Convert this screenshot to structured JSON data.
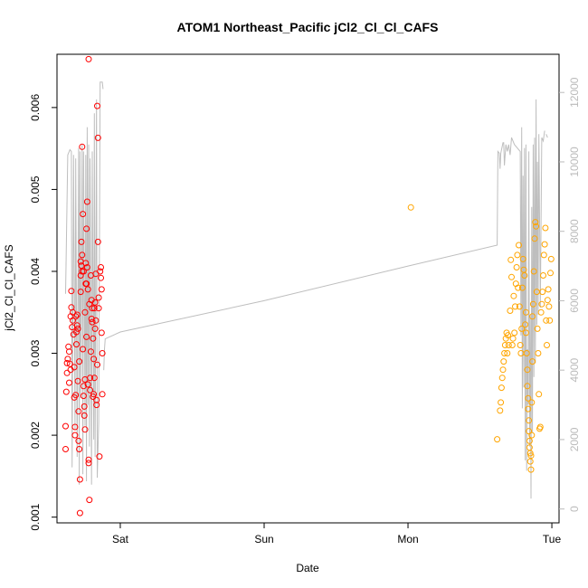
{
  "chart_data": {
    "type": "scatter",
    "title": "ATOM1 Northeast_Pacific jCl2_Cl_Cl_CAFS",
    "xlabel": "Date",
    "ylabel": "jCl2_Cl_Cl_CAFS",
    "x_ticks": [
      {
        "label": "Sat",
        "pos": 3.0
      },
      {
        "label": "Sun",
        "pos": 4.0
      },
      {
        "label": "Mon",
        "pos": 5.0
      },
      {
        "label": "Tue",
        "pos": 6.0
      }
    ],
    "xlim": [
      2.56,
      6.05
    ],
    "ylim": [
      0.00093,
      0.00665
    ],
    "y_ticks": [
      "0.001",
      "0.002",
      "0.003",
      "0.004",
      "0.005",
      "0.006"
    ],
    "y2lim": [
      -400,
      13100
    ],
    "y2_ticks": [
      "0",
      "2000",
      "4000",
      "6000",
      "8000",
      "10000",
      "12000"
    ],
    "colors": {
      "series1": "#ff0000",
      "series2": "#ffa500",
      "altitude": "#bebebe"
    },
    "series": [
      {
        "points": [
          [
            2.62,
            0.00183
          ],
          [
            2.62,
            0.00211
          ],
          [
            2.625,
            0.00253
          ],
          [
            2.63,
            0.00276
          ],
          [
            2.63,
            0.00288
          ],
          [
            2.635,
            0.00293
          ],
          [
            2.64,
            0.00308
          ],
          [
            2.645,
            0.00302
          ],
          [
            2.645,
            0.00264
          ],
          [
            2.65,
            0.00287
          ],
          [
            2.655,
            0.0028
          ],
          [
            2.655,
            0.00345
          ],
          [
            2.66,
            0.00356
          ],
          [
            2.66,
            0.00376
          ],
          [
            2.665,
            0.00332
          ],
          [
            2.67,
            0.0035
          ],
          [
            2.67,
            0.0034
          ],
          [
            2.675,
            0.00323
          ],
          [
            2.68,
            0.00283
          ],
          [
            2.68,
            0.00246
          ],
          [
            2.685,
            0.0021
          ],
          [
            2.685,
            0.002
          ],
          [
            2.69,
            0.00249
          ],
          [
            2.695,
            0.00311
          ],
          [
            2.695,
            0.00326
          ],
          [
            2.7,
            0.00334
          ],
          [
            2.7,
            0.00347
          ],
          [
            2.705,
            0.00266
          ],
          [
            2.71,
            0.00229
          ],
          [
            2.71,
            0.00193
          ],
          [
            2.715,
            0.00183
          ],
          [
            2.72,
            0.00105
          ],
          [
            2.72,
            0.00146
          ],
          [
            2.725,
            0.00395
          ],
          [
            2.725,
            0.00375
          ],
          [
            2.73,
            0.00407
          ],
          [
            2.73,
            0.00436
          ],
          [
            2.735,
            0.00552
          ],
          [
            2.735,
            0.0042
          ],
          [
            2.74,
            0.0047
          ],
          [
            2.74,
            0.00305
          ],
          [
            2.745,
            0.0026
          ],
          [
            2.745,
            0.00248
          ],
          [
            2.75,
            0.00235
          ],
          [
            2.75,
            0.00224
          ],
          [
            2.755,
            0.00207
          ],
          [
            2.755,
            0.0035
          ],
          [
            2.76,
            0.00385
          ],
          [
            2.76,
            0.0041
          ],
          [
            2.765,
            0.00452
          ],
          [
            2.765,
            0.0032
          ],
          [
            2.77,
            0.00485
          ],
          [
            2.77,
            0.00405
          ],
          [
            2.775,
            0.00378
          ],
          [
            2.775,
            0.00262
          ],
          [
            2.78,
            0.0017
          ],
          [
            2.78,
            0.00166
          ],
          [
            2.785,
            0.00121
          ],
          [
            2.79,
            0.00255
          ],
          [
            2.79,
            0.0027
          ],
          [
            2.795,
            0.00302
          ],
          [
            2.795,
            0.00395
          ],
          [
            2.8,
            0.00365
          ],
          [
            2.8,
            0.00342
          ],
          [
            2.805,
            0.00338
          ],
          [
            2.81,
            0.00318
          ],
          [
            2.81,
            0.00247
          ],
          [
            2.815,
            0.0025
          ],
          [
            2.815,
            0.00293
          ],
          [
            2.82,
            0.00355
          ],
          [
            2.82,
            0.0027
          ],
          [
            2.825,
            0.0033
          ],
          [
            2.83,
            0.00397
          ],
          [
            2.83,
            0.0034
          ],
          [
            2.835,
            0.00243
          ],
          [
            2.835,
            0.00237
          ],
          [
            2.84,
            0.00286
          ],
          [
            2.84,
            0.00602
          ],
          [
            2.845,
            0.00563
          ],
          [
            2.845,
            0.00436
          ],
          [
            2.85,
            0.00355
          ],
          [
            2.85,
            0.00368
          ],
          [
            2.855,
            0.00174
          ],
          [
            2.86,
            0.004
          ],
          [
            2.865,
            0.00405
          ],
          [
            2.865,
            0.00392
          ],
          [
            2.87,
            0.00378
          ],
          [
            2.87,
            0.00325
          ],
          [
            2.875,
            0.003
          ],
          [
            2.875,
            0.0025
          ],
          [
            2.78,
            0.00659
          ],
          [
            2.725,
            0.00412
          ],
          [
            2.745,
            0.004
          ],
          [
            2.765,
            0.00385
          ],
          [
            2.785,
            0.0036
          ],
          [
            2.805,
            0.00355
          ],
          [
            2.825,
            0.00362
          ],
          [
            2.69,
            0.00345
          ],
          [
            2.705,
            0.0033
          ],
          [
            2.715,
            0.0029
          ],
          [
            2.735,
            0.004
          ],
          [
            2.755,
            0.00268
          ]
        ]
      },
      {
        "points": [
          [
            5.02,
            0.00478
          ],
          [
            5.62,
            0.00195
          ],
          [
            5.64,
            0.0023
          ],
          [
            5.645,
            0.0024
          ],
          [
            5.65,
            0.00258
          ],
          [
            5.655,
            0.0027
          ],
          [
            5.66,
            0.0028
          ],
          [
            5.665,
            0.0029
          ],
          [
            5.67,
            0.003
          ],
          [
            5.675,
            0.0031
          ],
          [
            5.68,
            0.00318
          ],
          [
            5.685,
            0.00325
          ],
          [
            5.69,
            0.003
          ],
          [
            5.695,
            0.00322
          ],
          [
            5.7,
            0.0031
          ],
          [
            5.71,
            0.00352
          ],
          [
            5.715,
            0.00414
          ],
          [
            5.72,
            0.00393
          ],
          [
            5.725,
            0.0031
          ],
          [
            5.73,
            0.00318
          ],
          [
            5.735,
            0.0037
          ],
          [
            5.74,
            0.00325
          ],
          [
            5.745,
            0.00357
          ],
          [
            5.75,
            0.00385
          ],
          [
            5.755,
            0.00405
          ],
          [
            5.76,
            0.0042
          ],
          [
            5.765,
            0.0038
          ],
          [
            5.77,
            0.00432
          ],
          [
            5.775,
            0.00357
          ],
          [
            5.78,
            0.0031
          ],
          [
            5.785,
            0.003
          ],
          [
            5.79,
            0.0033
          ],
          [
            5.795,
            0.0038
          ],
          [
            5.8,
            0.00415
          ],
          [
            5.805,
            0.00402
          ],
          [
            5.81,
            0.00395
          ],
          [
            5.815,
            0.00335
          ],
          [
            5.82,
            0.0035
          ],
          [
            5.82,
            0.00325
          ],
          [
            5.825,
            0.003
          ],
          [
            5.83,
            0.0028
          ],
          [
            5.83,
            0.0026
          ],
          [
            5.835,
            0.00245
          ],
          [
            5.835,
            0.00232
          ],
          [
            5.84,
            0.00218
          ],
          [
            5.84,
            0.00205
          ],
          [
            5.845,
            0.00193
          ],
          [
            5.845,
            0.00185
          ],
          [
            5.85,
            0.00178
          ],
          [
            5.85,
            0.00168
          ],
          [
            5.855,
            0.00158
          ],
          [
            5.855,
            0.00175
          ],
          [
            5.86,
            0.002
          ],
          [
            5.86,
            0.0024
          ],
          [
            5.865,
            0.0029
          ],
          [
            5.865,
            0.00345
          ],
          [
            5.87,
            0.0036
          ],
          [
            5.875,
            0.004
          ],
          [
            5.88,
            0.0044
          ],
          [
            5.885,
            0.0046
          ],
          [
            5.89,
            0.00455
          ],
          [
            5.895,
            0.00375
          ],
          [
            5.9,
            0.0033
          ],
          [
            5.905,
            0.003
          ],
          [
            5.91,
            0.0025
          ],
          [
            5.915,
            0.00208
          ],
          [
            5.92,
            0.0021
          ],
          [
            5.925,
            0.0035
          ],
          [
            5.93,
            0.0036
          ],
          [
            5.935,
            0.00375
          ],
          [
            5.94,
            0.00395
          ],
          [
            5.945,
            0.0042
          ],
          [
            5.95,
            0.00433
          ],
          [
            5.955,
            0.00453
          ],
          [
            5.96,
            0.0034
          ],
          [
            5.965,
            0.0031
          ],
          [
            5.97,
            0.00365
          ],
          [
            5.975,
            0.00378
          ],
          [
            5.98,
            0.00357
          ],
          [
            5.985,
            0.0034
          ],
          [
            5.99,
            0.00398
          ],
          [
            5.995,
            0.00415
          ]
        ]
      }
    ],
    "altitude": [
      [
        2.62,
        6200
      ],
      [
        2.635,
        10200
      ],
      [
        2.65,
        10350
      ],
      [
        2.66,
        10300
      ],
      [
        2.665,
        1200
      ],
      [
        2.675,
        10200
      ],
      [
        2.685,
        2300
      ],
      [
        2.69,
        10100
      ],
      [
        2.7,
        1500
      ],
      [
        2.71,
        10400
      ],
      [
        2.715,
        700
      ],
      [
        2.72,
        10300
      ],
      [
        2.725,
        3200
      ],
      [
        2.735,
        10500
      ],
      [
        2.74,
        1000
      ],
      [
        2.745,
        10300
      ],
      [
        2.755,
        2400
      ],
      [
        2.76,
        10200
      ],
      [
        2.765,
        800
      ],
      [
        2.77,
        11000
      ],
      [
        2.775,
        3000
      ],
      [
        2.78,
        10500
      ],
      [
        2.785,
        1800
      ],
      [
        2.79,
        10100
      ],
      [
        2.8,
        700
      ],
      [
        2.805,
        10300
      ],
      [
        2.815,
        2000
      ],
      [
        2.82,
        11400
      ],
      [
        2.825,
        1500
      ],
      [
        2.835,
        11800
      ],
      [
        2.84,
        900
      ],
      [
        2.85,
        2500
      ],
      [
        2.86,
        12300
      ],
      [
        2.875,
        12300
      ],
      [
        2.88,
        12100
      ],
      [
        2.885,
        4000
      ],
      [
        2.89,
        4600
      ],
      [
        2.895,
        4900
      ],
      [
        3.0,
        5100
      ],
      [
        4.0,
        6000
      ],
      [
        5.0,
        7000
      ],
      [
        5.62,
        7600
      ],
      [
        5.625,
        10300
      ],
      [
        5.635,
        10250
      ],
      [
        5.64,
        9800
      ],
      [
        5.645,
        10250
      ],
      [
        5.66,
        10550
      ],
      [
        5.665,
        10550
      ],
      [
        5.67,
        9900
      ],
      [
        5.68,
        10500
      ],
      [
        5.69,
        10300
      ],
      [
        5.7,
        10500
      ],
      [
        5.71,
        10200
      ],
      [
        5.72,
        10700
      ],
      [
        5.74,
        10500
      ],
      [
        5.78,
        10300
      ],
      [
        5.785,
        5000
      ],
      [
        5.79,
        11000
      ],
      [
        5.795,
        2900
      ],
      [
        5.8,
        9600
      ],
      [
        5.805,
        3500
      ],
      [
        5.81,
        10400
      ],
      [
        5.815,
        1400
      ],
      [
        5.82,
        10500
      ],
      [
        5.825,
        1100
      ],
      [
        5.83,
        4600
      ],
      [
        5.835,
        3000
      ],
      [
        5.84,
        10300
      ],
      [
        5.845,
        1800
      ],
      [
        5.85,
        5600
      ],
      [
        5.855,
        300
      ],
      [
        5.86,
        8700
      ],
      [
        5.865,
        2200
      ],
      [
        5.87,
        10500
      ],
      [
        5.875,
        3800
      ],
      [
        5.88,
        10700
      ],
      [
        5.885,
        4200
      ],
      [
        5.89,
        11800
      ],
      [
        5.895,
        5300
      ],
      [
        5.9,
        10000
      ],
      [
        5.905,
        5600
      ],
      [
        5.91,
        10800
      ],
      [
        5.92,
        5800
      ],
      [
        5.93,
        10700
      ],
      [
        5.94,
        10600
      ],
      [
        5.95,
        10900
      ],
      [
        5.96,
        10800
      ],
      [
        5.97,
        10700
      ],
      [
        5.99,
        10900
      ],
      [
        6.0,
        10900
      ],
      [
        5.02,
        7950
      ],
      [
        5.89,
        10900
      ]
    ],
    "altitude_segments": [
      [
        0,
        34
      ],
      [
        35,
        85
      ],
      [
        86,
        87
      ]
    ]
  }
}
